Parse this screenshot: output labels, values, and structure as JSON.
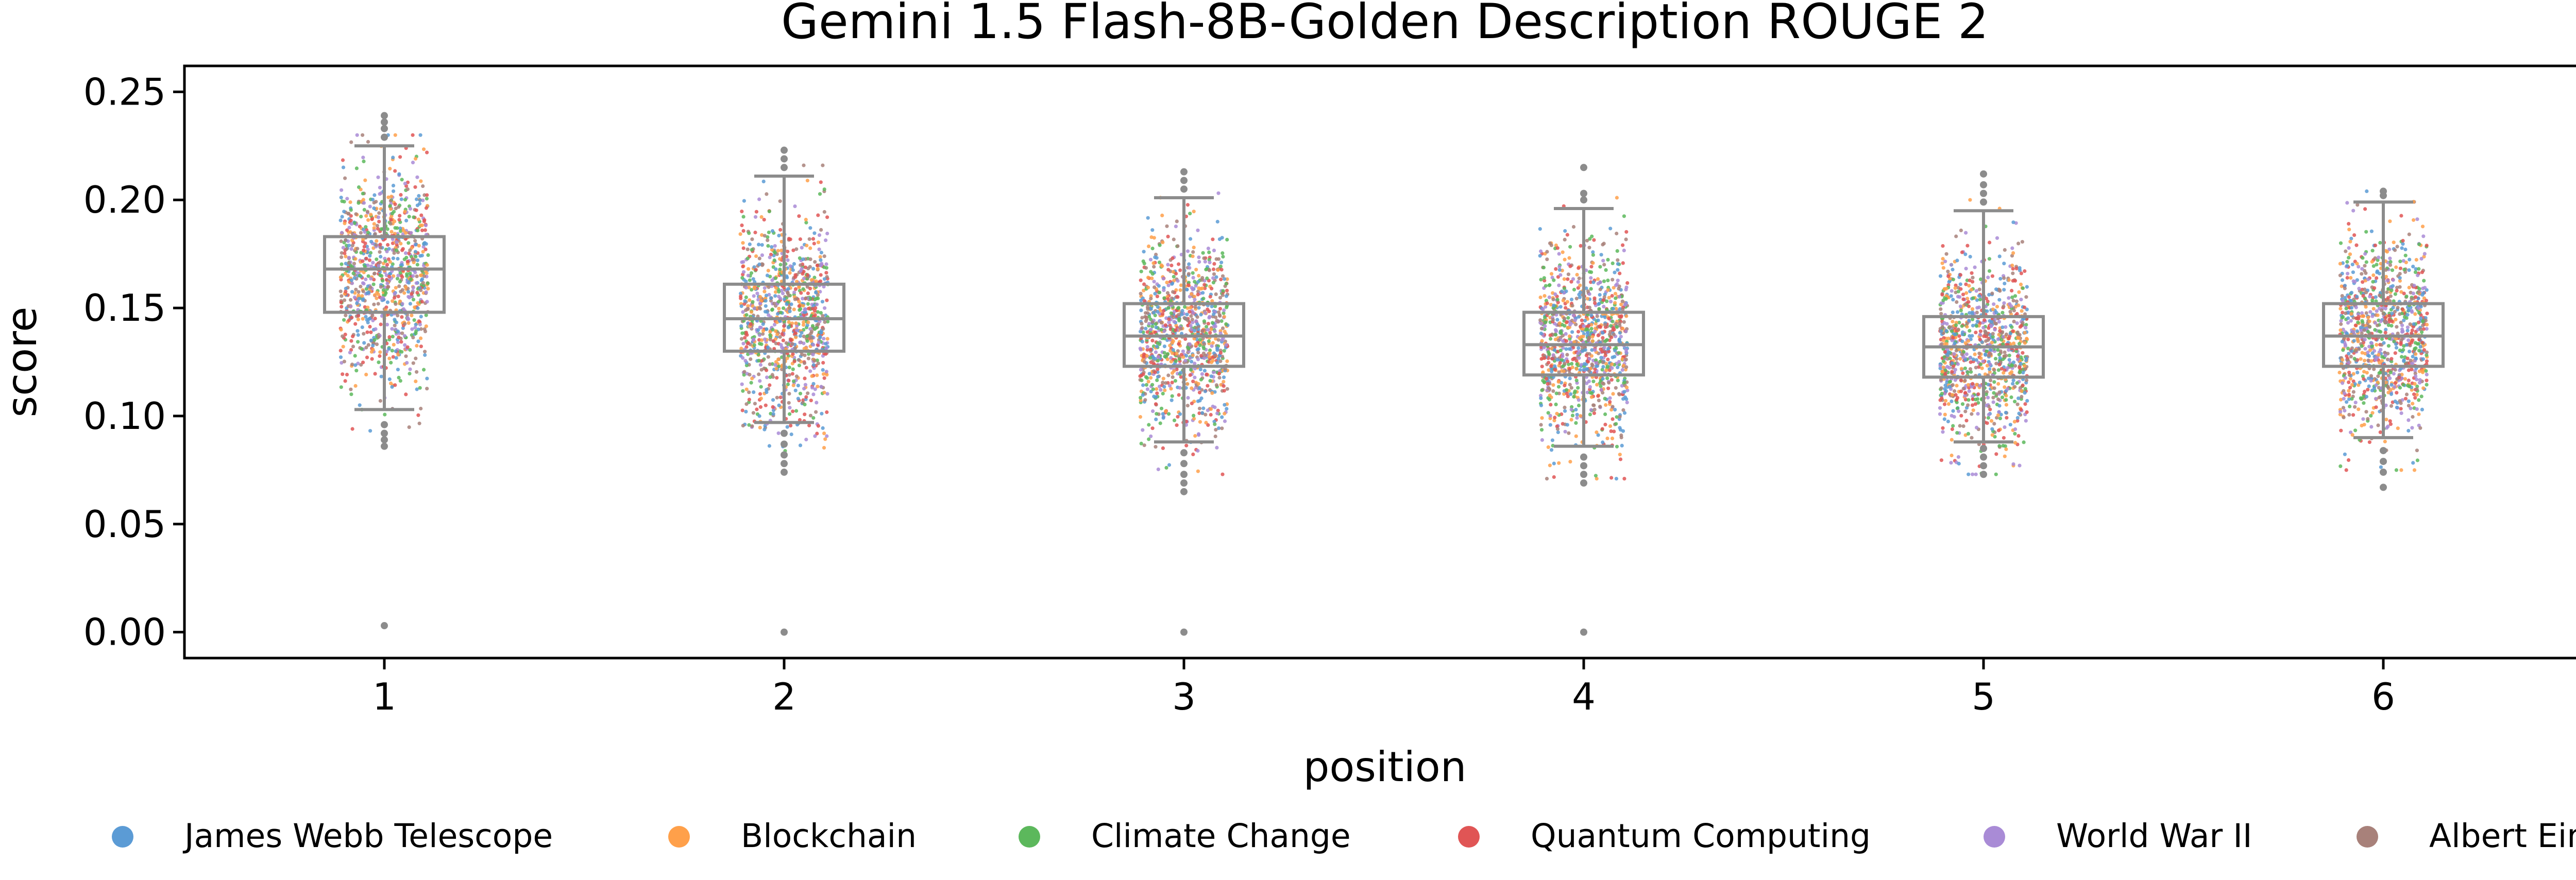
{
  "chart_data": {
    "type": "box-strip",
    "title": "Gemini 1.5 Flash-8B-Golden Description ROUGE 2",
    "xlabel": "position",
    "ylabel": "score",
    "categories": [
      "1",
      "2",
      "3",
      "4",
      "5",
      "6"
    ],
    "ylim": [
      -0.012,
      0.262
    ],
    "yticks": [
      "0.00",
      "0.05",
      "0.10",
      "0.15",
      "0.20",
      "0.25"
    ],
    "grid": false,
    "legend_position": "bottom",
    "series": [
      {
        "name": "James Webb Telescope",
        "color": "#5b9bd5"
      },
      {
        "name": "Blockchain",
        "color": "#ffa04a"
      },
      {
        "name": "Climate Change",
        "color": "#5cb85c"
      },
      {
        "name": "Quantum Computing",
        "color": "#e05555"
      },
      {
        "name": "World War II",
        "color": "#a98bd6"
      },
      {
        "name": "Albert Einstein",
        "color": "#a8817a"
      }
    ],
    "boxes": [
      {
        "position": "1",
        "whisker_low": 0.103,
        "q1": 0.148,
        "median": 0.168,
        "q3": 0.183,
        "whisker_high": 0.225,
        "outliers": [
          0.003,
          0.086,
          0.089,
          0.092,
          0.096,
          0.229,
          0.233,
          0.236,
          0.239
        ]
      },
      {
        "position": "2",
        "whisker_low": 0.097,
        "q1": 0.13,
        "median": 0.145,
        "q3": 0.161,
        "whisker_high": 0.211,
        "outliers": [
          0.0,
          0.074,
          0.078,
          0.082,
          0.087,
          0.092,
          0.215,
          0.219,
          0.223
        ]
      },
      {
        "position": "3",
        "whisker_low": 0.088,
        "q1": 0.123,
        "median": 0.137,
        "q3": 0.152,
        "whisker_high": 0.201,
        "outliers": [
          0.0,
          0.065,
          0.069,
          0.073,
          0.078,
          0.083,
          0.205,
          0.209,
          0.213
        ]
      },
      {
        "position": "4",
        "whisker_low": 0.086,
        "q1": 0.119,
        "median": 0.133,
        "q3": 0.148,
        "whisker_high": 0.196,
        "outliers": [
          0.0,
          0.069,
          0.073,
          0.077,
          0.081,
          0.2,
          0.203,
          0.215
        ]
      },
      {
        "position": "5",
        "whisker_low": 0.088,
        "q1": 0.118,
        "median": 0.132,
        "q3": 0.146,
        "whisker_high": 0.195,
        "outliers": [
          0.073,
          0.077,
          0.081,
          0.085,
          0.199,
          0.203,
          0.207,
          0.212
        ]
      },
      {
        "position": "6",
        "whisker_low": 0.09,
        "q1": 0.123,
        "median": 0.137,
        "q3": 0.152,
        "whisker_high": 0.199,
        "outliers": [
          0.067,
          0.074,
          0.079,
          0.084,
          0.202,
          0.204
        ]
      }
    ],
    "point_spread": [
      {
        "position": "1",
        "center": 0.165,
        "sd": 0.025,
        "n": 1000
      },
      {
        "position": "2",
        "center": 0.145,
        "sd": 0.024,
        "n": 1000
      },
      {
        "position": "3",
        "center": 0.137,
        "sd": 0.023,
        "n": 1000
      },
      {
        "position": "4",
        "center": 0.134,
        "sd": 0.022,
        "n": 1000
      },
      {
        "position": "5",
        "center": 0.132,
        "sd": 0.022,
        "n": 1000
      },
      {
        "position": "6",
        "center": 0.138,
        "sd": 0.022,
        "n": 1000
      }
    ],
    "box_color": "#8c8c8c"
  }
}
